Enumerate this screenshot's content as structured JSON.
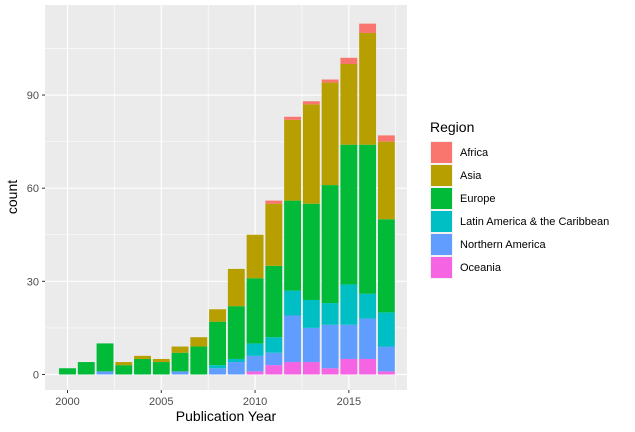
{
  "chart_data": {
    "type": "bar",
    "stacked": true,
    "title": "",
    "xlabel": "Publication Year",
    "ylabel": "count",
    "x": [
      2000,
      2001,
      2002,
      2003,
      2004,
      2005,
      2006,
      2007,
      2008,
      2009,
      2010,
      2011,
      2012,
      2013,
      2014,
      2015,
      2016,
      2017
    ],
    "xlim": [
      1998.8,
      2018.1
    ],
    "ylim": [
      -5,
      119
    ],
    "x_ticks": [
      2000,
      2005,
      2010,
      2015
    ],
    "y_ticks": [
      0,
      30,
      60,
      90
    ],
    "grid": true,
    "legend": {
      "title": "Region",
      "position": "right"
    },
    "series": [
      {
        "name": "Oceania",
        "color": "#F564E3",
        "values": [
          0,
          0,
          0,
          0,
          0,
          0,
          0,
          0,
          0,
          0,
          1,
          3,
          4,
          4,
          2,
          5,
          5,
          1
        ]
      },
      {
        "name": "Northern America",
        "color": "#619CFF",
        "values": [
          0,
          0,
          1,
          0,
          0,
          0,
          1,
          0,
          2,
          4,
          5,
          4,
          15,
          11,
          14,
          11,
          13,
          8
        ]
      },
      {
        "name": "Latin America & the Caribbean",
        "color": "#00BFC4",
        "values": [
          0,
          0,
          0,
          0,
          0,
          0,
          0,
          0,
          1,
          1,
          4,
          5,
          8,
          9,
          7,
          13,
          8,
          11
        ]
      },
      {
        "name": "Europe",
        "color": "#00BA38",
        "values": [
          2,
          4,
          9,
          3,
          5,
          4,
          6,
          9,
          14,
          17,
          21,
          23,
          29,
          31,
          38,
          45,
          48,
          30
        ]
      },
      {
        "name": "Asia",
        "color": "#B79F00",
        "values": [
          0,
          0,
          0,
          1,
          1,
          1,
          2,
          3,
          4,
          12,
          14,
          20,
          26,
          32,
          33,
          26,
          36,
          25
        ]
      },
      {
        "name": "Africa",
        "color": "#F8766D",
        "values": [
          0,
          0,
          0,
          0,
          0,
          0,
          0,
          0,
          0,
          0,
          0,
          1,
          1,
          1,
          1,
          2,
          3,
          2
        ]
      }
    ],
    "legend_order": [
      "Africa",
      "Asia",
      "Europe",
      "Latin America & the Caribbean",
      "Northern America",
      "Oceania"
    ]
  }
}
